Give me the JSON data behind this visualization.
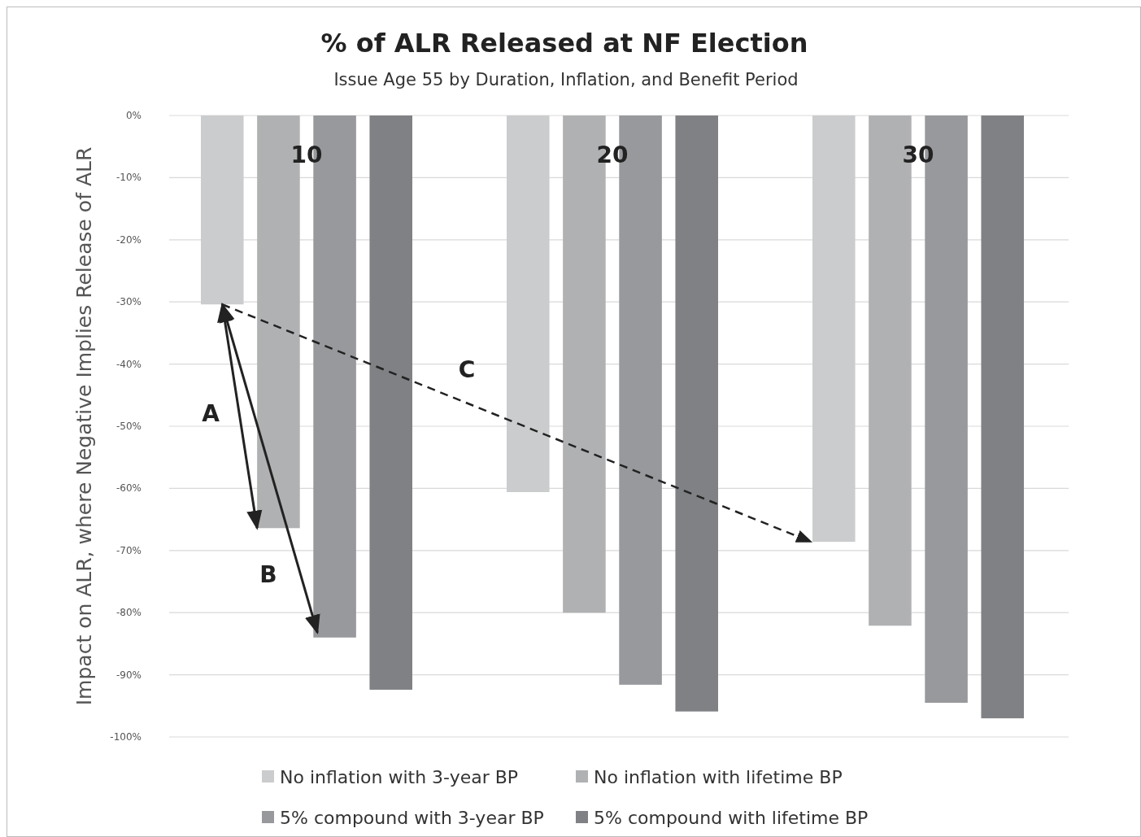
{
  "chart_data": {
    "type": "bar",
    "title": "% of ALR Released at NF Election",
    "subtitle": "Issue Age 55 by Duration, Inflation, and Benefit Period",
    "ylabel": "Impact on ALR, where Negative Implies Release of ALR",
    "categories": [
      "10",
      "20",
      "30"
    ],
    "series": [
      {
        "name": "No inflation with 3-year BP",
        "color": "#cbcccd",
        "values": [
          -30.4,
          -60.6,
          -68.6
        ]
      },
      {
        "name": "No inflation with lifetime BP",
        "color": "#b0b1b3",
        "values": [
          -66.4,
          -80.0,
          -82.1
        ]
      },
      {
        "name": "5% compound with 3-year BP",
        "color": "#98999c",
        "values": [
          -84.0,
          -91.6,
          -94.5
        ]
      },
      {
        "name": "5% compound with lifetime BP",
        "color": "#808184",
        "values": [
          -92.4,
          -95.9,
          -97.0
        ]
      }
    ],
    "ylim": [
      -100,
      0
    ],
    "yticks": [
      {
        "value": 0,
        "label": "0%"
      },
      {
        "value": -10,
        "label": "-10%"
      },
      {
        "value": -20,
        "label": "-20%"
      },
      {
        "value": -30,
        "label": "-30%"
      },
      {
        "value": -40,
        "label": "-40%"
      },
      {
        "value": -50,
        "label": "-50%"
      },
      {
        "value": -60,
        "label": "-60%"
      },
      {
        "value": -70,
        "label": "-70%"
      },
      {
        "value": -80,
        "label": "-80%"
      },
      {
        "value": -90,
        "label": "-90%"
      },
      {
        "value": -100,
        "label": "-100%"
      }
    ],
    "grid": "y",
    "legend": "bottom",
    "annotations": [
      "A",
      "B",
      "C"
    ]
  }
}
